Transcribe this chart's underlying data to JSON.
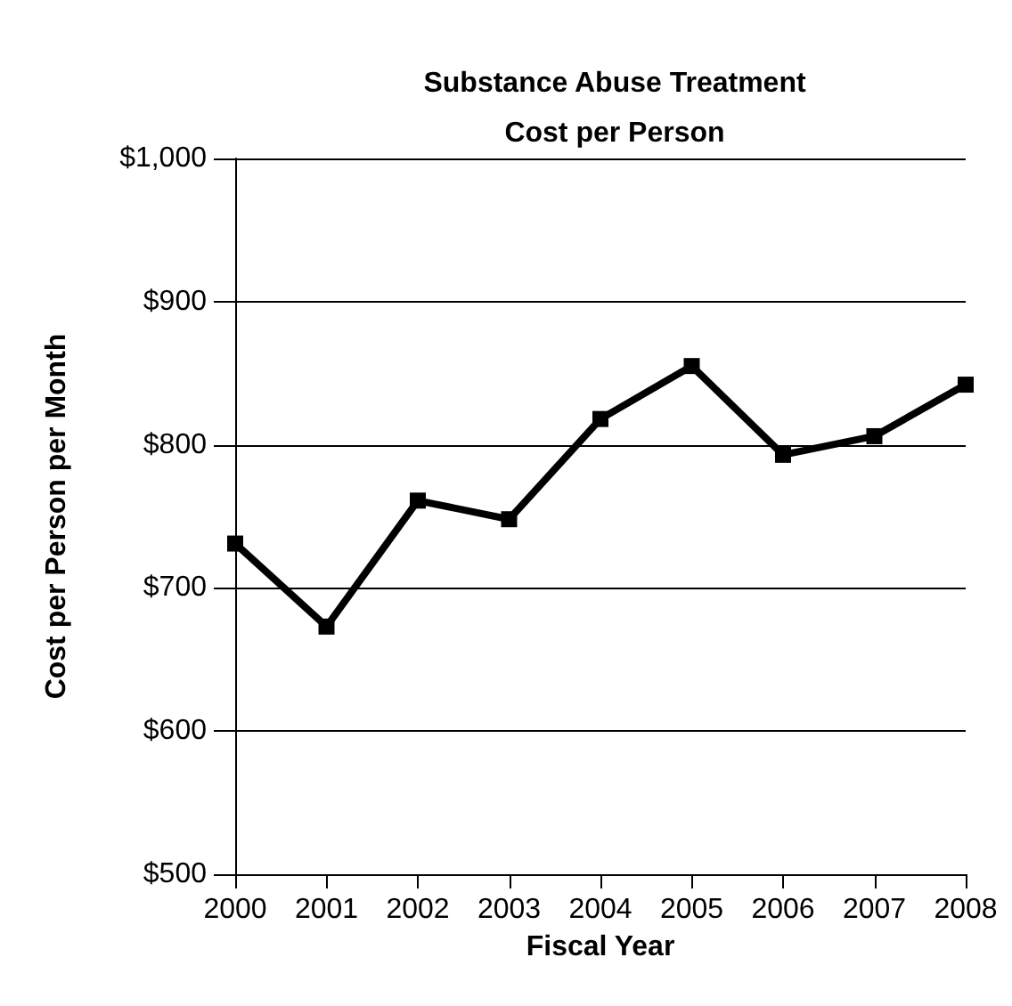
{
  "chart_data": {
    "type": "line",
    "title": "Substance Abuse Treatment\nCost per Person",
    "xlabel": "Fiscal Year",
    "ylabel": "Cost per Person per Month",
    "categories": [
      "2000",
      "2001",
      "2002",
      "2003",
      "2004",
      "2005",
      "2006",
      "2007",
      "2008"
    ],
    "series": [
      {
        "color": "#000000",
        "values": [
          731,
          673,
          761,
          748,
          818,
          855,
          793,
          806,
          842
        ]
      }
    ],
    "ylim": [
      500,
      1000
    ],
    "yticks": [
      {
        "value": 500,
        "label": "$500"
      },
      {
        "value": 600,
        "label": "$600"
      },
      {
        "value": 700,
        "label": "$700"
      },
      {
        "value": 800,
        "label": "$800"
      },
      {
        "value": 900,
        "label": "$900"
      },
      {
        "value": 1000,
        "label": "$1,000"
      }
    ],
    "grid": "y",
    "marker": "square",
    "line_style": "solid"
  }
}
